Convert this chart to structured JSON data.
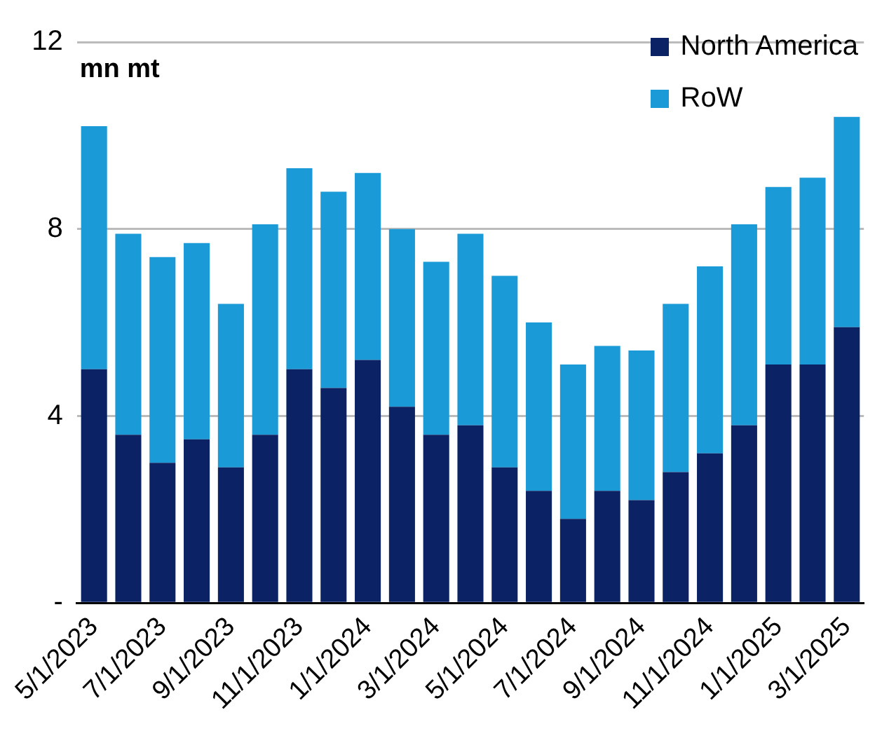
{
  "chart_data": {
    "type": "bar",
    "stacked": true,
    "ylabel": "mn mt",
    "categories": [
      "5/1/2023",
      null,
      "7/1/2023",
      null,
      "9/1/2023",
      null,
      "11/1/2023",
      null,
      "1/1/2024",
      null,
      "3/1/2024",
      null,
      "5/1/2024",
      null,
      "7/1/2024",
      null,
      "9/1/2024",
      null,
      "11/1/2024",
      null,
      "1/1/2025",
      null,
      "3/1/2025"
    ],
    "series": [
      {
        "name": "North America",
        "color": "#0b2265",
        "values": [
          5.0,
          3.6,
          3.0,
          3.5,
          2.9,
          3.6,
          5.0,
          4.6,
          5.2,
          4.2,
          3.6,
          3.8,
          2.9,
          2.4,
          1.8,
          2.4,
          2.2,
          2.8,
          3.2,
          3.8,
          5.1,
          5.1,
          5.9
        ]
      },
      {
        "name": "RoW",
        "color": "#1a9ad6",
        "values": [
          5.2,
          4.3,
          4.4,
          4.2,
          3.5,
          4.5,
          4.3,
          4.2,
          4.0,
          3.8,
          3.7,
          4.1,
          4.1,
          3.6,
          3.3,
          3.1,
          3.2,
          3.6,
          4.0,
          4.3,
          3.8,
          4.0,
          4.5
        ]
      }
    ],
    "ylim": [
      0,
      12
    ],
    "yticks": [
      {
        "value": 0,
        "label": "-"
      },
      4,
      8,
      12
    ],
    "grid": "y",
    "legend": "top right"
  }
}
